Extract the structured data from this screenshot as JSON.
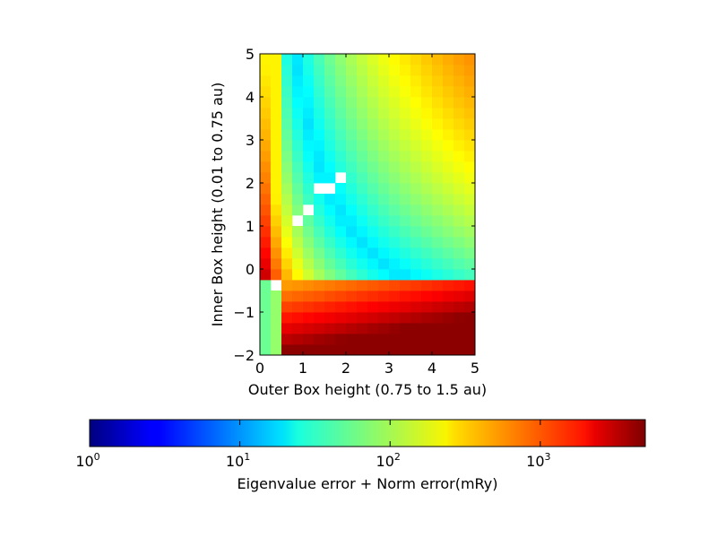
{
  "chart_data": {
    "type": "heatmap",
    "title": "",
    "xlabel": "Outer Box height (0.75 to 1.5 au)",
    "ylabel": "Inner Box height (0.01 to 0.75 au)",
    "xlim": [
      0,
      5
    ],
    "ylim": [
      -2,
      5
    ],
    "x_ticks": [
      0,
      1,
      2,
      3,
      4,
      5
    ],
    "y_ticks": [
      -2,
      -1,
      0,
      1,
      2,
      3,
      4,
      5
    ],
    "x_tick_labels": [
      "0",
      "1",
      "2",
      "3",
      "4",
      "5"
    ],
    "y_tick_labels": [
      "−2",
      "−1",
      "0",
      "1",
      "2",
      "3",
      "4",
      "5"
    ],
    "grid": false,
    "colormap": "jet",
    "color_scale": "log",
    "colorbar": {
      "label": "Eigenvalue error + Norm error(mRy)",
      "range": [
        1,
        5000
      ],
      "tick_values": [
        1,
        10,
        100,
        1000
      ],
      "tick_labels": [
        {
          "base": "10",
          "exp": "0"
        },
        {
          "base": "10",
          "exp": "1"
        },
        {
          "base": "10",
          "exp": "2"
        },
        {
          "base": "10",
          "exp": "3"
        }
      ],
      "location": "bottom"
    },
    "cell_width": 0.25,
    "cell_height": 0.25,
    "nx": 20,
    "ny": 28,
    "missing_cells": [
      [
        1,
        6
      ],
      [
        3,
        12
      ],
      [
        4,
        13
      ],
      [
        5,
        15
      ],
      [
        6,
        15
      ],
      [
        7,
        16
      ]
    ],
    "value_model": "Approximate log10 error surface: high (~200-300) near x=0 edge, minimum valley (~15-25) along curve y*x ~ const, large errors (~500-4000) in lower-right region y<-0.5"
  }
}
